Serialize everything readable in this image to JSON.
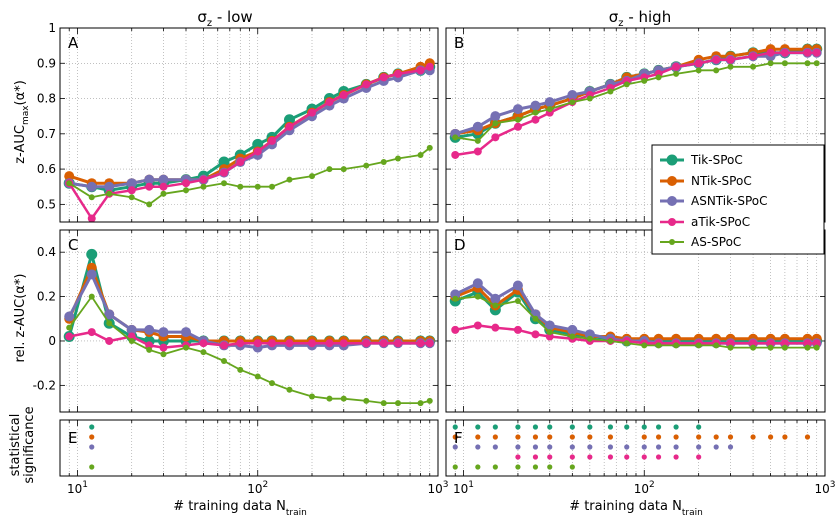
{
  "titles": {
    "left_main": "σ",
    "left_sub": "z",
    "left_rest": " - low",
    "right_main": "σ",
    "right_sub": "z",
    "right_rest": " - high"
  },
  "axis_labels": {
    "ylabel_top_main": "z-AUC",
    "ylabel_top_sub": "max",
    "ylabel_top_rest": "(α*)",
    "ylabel_mid": "rel. z-AUC(α*)",
    "ylabel_bot_line1": "statistical",
    "ylabel_bot_line2": "significance",
    "xlabel_main": "# training data N",
    "xlabel_sub": "train"
  },
  "panel_labels": [
    "A",
    "B",
    "C",
    "D",
    "E",
    "F"
  ],
  "colors": {
    "Tik-SPoC": "#1b9e77",
    "NTik-SPoC": "#d95f02",
    "ASNTik-SPoC": "#7570b3",
    "aTik-SPoC": "#e7298a",
    "AS-SPoC": "#66a61e"
  },
  "chart_data": [
    {
      "panel": "A",
      "type": "line",
      "title": "σz - low",
      "xlabel": "",
      "ylabel": "z-AUCmax(α*)",
      "xscale": "log",
      "xlim": [
        8,
        1000
      ],
      "ylim": [
        0.45,
        1.0
      ],
      "yticks": [
        0.5,
        0.6,
        0.7,
        0.8,
        0.9,
        1
      ],
      "xticks": [
        "10^1",
        "10^2",
        "10^3"
      ],
      "x": [
        9,
        12,
        15,
        20,
        25,
        30,
        40,
        50,
        65,
        80,
        100,
        120,
        150,
        200,
        250,
        300,
        400,
        500,
        600,
        800,
        900
      ],
      "series": [
        {
          "name": "Tik-SPoC",
          "values": [
            0.56,
            0.55,
            0.54,
            0.55,
            0.56,
            0.56,
            0.57,
            0.58,
            0.62,
            0.64,
            0.67,
            0.69,
            0.74,
            0.77,
            0.8,
            0.82,
            0.84,
            0.86,
            0.87,
            0.88,
            0.89
          ]
        },
        {
          "name": "NTik-SPoC",
          "values": [
            0.58,
            0.56,
            0.56,
            0.56,
            0.57,
            0.57,
            0.57,
            0.57,
            0.6,
            0.63,
            0.65,
            0.68,
            0.72,
            0.76,
            0.79,
            0.81,
            0.84,
            0.86,
            0.87,
            0.89,
            0.9
          ]
        },
        {
          "name": "ASNTik-SPoC",
          "values": [
            0.56,
            0.55,
            0.55,
            0.56,
            0.57,
            0.57,
            0.57,
            0.57,
            0.59,
            0.62,
            0.64,
            0.67,
            0.71,
            0.75,
            0.78,
            0.8,
            0.83,
            0.85,
            0.86,
            0.88,
            0.88
          ]
        },
        {
          "name": "aTik-SPoC",
          "values": [
            0.56,
            0.46,
            0.53,
            0.54,
            0.55,
            0.55,
            0.56,
            0.57,
            0.59,
            0.62,
            0.65,
            0.68,
            0.72,
            0.76,
            0.79,
            0.81,
            0.84,
            0.86,
            0.87,
            0.88,
            0.89
          ]
        },
        {
          "name": "AS-SPoC",
          "values": [
            0.56,
            0.52,
            0.53,
            0.52,
            0.5,
            0.53,
            0.54,
            0.55,
            0.56,
            0.55,
            0.55,
            0.55,
            0.57,
            0.58,
            0.6,
            0.6,
            0.61,
            0.62,
            0.63,
            0.64,
            0.66
          ]
        }
      ]
    },
    {
      "panel": "B",
      "type": "line",
      "title": "σz - high",
      "xscale": "log",
      "xlim": [
        8,
        1000
      ],
      "ylim": [
        0.45,
        1.0
      ],
      "yticks": [
        0.5,
        0.6,
        0.7,
        0.8,
        0.9,
        1
      ],
      "xticks": [
        "10^1",
        "10^2",
        "10^3"
      ],
      "legend": "center-right",
      "x": [
        9,
        12,
        15,
        20,
        25,
        30,
        40,
        50,
        65,
        80,
        100,
        120,
        150,
        200,
        250,
        300,
        400,
        500,
        600,
        800,
        900
      ],
      "series": [
        {
          "name": "Tik-SPoC",
          "values": [
            0.69,
            0.7,
            0.73,
            0.75,
            0.77,
            0.78,
            0.8,
            0.82,
            0.84,
            0.86,
            0.87,
            0.88,
            0.89,
            0.9,
            0.91,
            0.92,
            0.93,
            0.93,
            0.93,
            0.94,
            0.94
          ]
        },
        {
          "name": "NTik-SPoC",
          "values": [
            0.7,
            0.71,
            0.73,
            0.75,
            0.77,
            0.78,
            0.8,
            0.82,
            0.84,
            0.86,
            0.87,
            0.88,
            0.89,
            0.91,
            0.92,
            0.92,
            0.93,
            0.94,
            0.94,
            0.94,
            0.94
          ]
        },
        {
          "name": "ASNTik-SPoC",
          "values": [
            0.7,
            0.72,
            0.75,
            0.77,
            0.78,
            0.79,
            0.81,
            0.82,
            0.84,
            0.85,
            0.87,
            0.88,
            0.89,
            0.9,
            0.91,
            0.91,
            0.92,
            0.92,
            0.93,
            0.93,
            0.93
          ]
        },
        {
          "name": "aTik-SPoC",
          "values": [
            0.64,
            0.65,
            0.69,
            0.72,
            0.74,
            0.76,
            0.79,
            0.81,
            0.83,
            0.85,
            0.86,
            0.87,
            0.89,
            0.9,
            0.91,
            0.91,
            0.92,
            0.93,
            0.93,
            0.93,
            0.93
          ]
        },
        {
          "name": "AS-SPoC",
          "values": [
            0.69,
            0.68,
            0.73,
            0.74,
            0.76,
            0.77,
            0.79,
            0.8,
            0.82,
            0.84,
            0.85,
            0.86,
            0.87,
            0.88,
            0.88,
            0.89,
            0.89,
            0.9,
            0.9,
            0.9,
            0.9
          ]
        }
      ]
    },
    {
      "panel": "C",
      "type": "line",
      "ylabel": "rel. z-AUC(α*)",
      "xscale": "log",
      "xlim": [
        8,
        1000
      ],
      "ylim": [
        -0.32,
        0.5
      ],
      "yticks": [
        -0.2,
        0,
        0.2,
        0.4
      ],
      "xticks": [
        "10^1",
        "10^2",
        "10^3"
      ],
      "x": [
        9,
        12,
        15,
        20,
        25,
        30,
        40,
        50,
        65,
        80,
        100,
        120,
        150,
        200,
        250,
        300,
        400,
        500,
        600,
        800,
        900
      ],
      "series": [
        {
          "name": "Tik-SPoC",
          "values": [
            0.02,
            0.39,
            0.08,
            0.02,
            0.0,
            0.0,
            0.0,
            0.0,
            0.0,
            0.0,
            0.0,
            0.0,
            0.0,
            0.0,
            0.0,
            0.0,
            0.0,
            0.0,
            0.0,
            0.0,
            0.0
          ]
        },
        {
          "name": "NTik-SPoC",
          "values": [
            0.1,
            0.33,
            0.12,
            0.05,
            0.04,
            0.02,
            0.02,
            0.0,
            0.0,
            0.0,
            0.0,
            0.0,
            0.0,
            0.0,
            0.0,
            0.0,
            0.0,
            0.0,
            0.0,
            0.0,
            0.0
          ]
        },
        {
          "name": "ASNTik-SPoC",
          "values": [
            0.11,
            0.3,
            0.12,
            0.05,
            0.05,
            0.04,
            0.04,
            0.0,
            -0.02,
            -0.02,
            -0.03,
            -0.02,
            -0.02,
            -0.02,
            -0.02,
            -0.02,
            -0.01,
            -0.01,
            -0.01,
            -0.01,
            -0.01
          ]
        },
        {
          "name": "aTik-SPoC",
          "values": [
            0.02,
            0.04,
            0.0,
            0.02,
            -0.02,
            -0.03,
            -0.02,
            -0.01,
            -0.02,
            -0.01,
            -0.01,
            -0.01,
            -0.01,
            -0.01,
            -0.01,
            -0.01,
            -0.01,
            -0.01,
            -0.01,
            -0.01,
            -0.01
          ]
        },
        {
          "name": "AS-SPoC",
          "values": [
            0.06,
            0.2,
            0.08,
            0.0,
            -0.04,
            -0.06,
            -0.03,
            -0.05,
            -0.09,
            -0.13,
            -0.16,
            -0.19,
            -0.22,
            -0.25,
            -0.26,
            -0.26,
            -0.27,
            -0.28,
            -0.28,
            -0.28,
            -0.27
          ]
        }
      ]
    },
    {
      "panel": "D",
      "type": "line",
      "xscale": "log",
      "xlim": [
        8,
        1000
      ],
      "ylim": [
        -0.32,
        0.5
      ],
      "yticks": [
        -0.2,
        0,
        0.2,
        0.4
      ],
      "xticks": [
        "10^1",
        "10^2",
        "10^3"
      ],
      "x": [
        9,
        12,
        15,
        20,
        25,
        30,
        40,
        50,
        65,
        80,
        100,
        120,
        150,
        200,
        250,
        300,
        400,
        500,
        600,
        800,
        900
      ],
      "series": [
        {
          "name": "Tik-SPoC",
          "values": [
            0.18,
            0.22,
            0.14,
            0.22,
            0.1,
            0.05,
            0.03,
            0.02,
            0.01,
            0.0,
            0.0,
            0.0,
            0.0,
            0.0,
            0.0,
            0.0,
            0.0,
            0.0,
            0.0,
            0.0,
            0.0
          ]
        },
        {
          "name": "NTik-SPoC",
          "values": [
            0.2,
            0.24,
            0.16,
            0.23,
            0.12,
            0.06,
            0.04,
            0.02,
            0.02,
            0.01,
            0.01,
            0.01,
            0.01,
            0.01,
            0.01,
            0.01,
            0.01,
            0.01,
            0.01,
            0.01,
            0.01
          ]
        },
        {
          "name": "ASNTik-SPoC",
          "values": [
            0.21,
            0.26,
            0.19,
            0.25,
            0.12,
            0.07,
            0.05,
            0.03,
            0.01,
            0.0,
            0.0,
            -0.01,
            -0.01,
            -0.01,
            -0.01,
            -0.01,
            -0.01,
            -0.01,
            -0.01,
            -0.01,
            -0.01
          ]
        },
        {
          "name": "aTik-SPoC",
          "values": [
            0.05,
            0.07,
            0.06,
            0.05,
            0.03,
            0.02,
            0.01,
            0.0,
            0.0,
            0.0,
            -0.01,
            -0.01,
            -0.01,
            -0.01,
            -0.01,
            -0.01,
            -0.01,
            -0.01,
            -0.01,
            -0.01,
            -0.01
          ]
        },
        {
          "name": "AS-SPoC",
          "values": [
            0.19,
            0.2,
            0.16,
            0.18,
            0.1,
            0.04,
            0.02,
            0.01,
            0.0,
            -0.01,
            -0.02,
            -0.02,
            -0.02,
            -0.02,
            -0.02,
            -0.03,
            -0.03,
            -0.03,
            -0.03,
            -0.03,
            -0.03
          ]
        }
      ]
    },
    {
      "panel": "E",
      "type": "scatter",
      "ylabel": "statistical significance",
      "xscale": "log",
      "xlim": [
        8,
        1000
      ],
      "xlabel": "# training data Ntrain",
      "xticks": [
        "10^1",
        "10^2",
        "10^3"
      ],
      "rows": [
        {
          "name": "Tik-SPoC",
          "x": [
            12
          ]
        },
        {
          "name": "NTik-SPoC",
          "x": [
            12
          ]
        },
        {
          "name": "ASNTik-SPoC",
          "x": [
            12
          ]
        },
        {
          "name": "aTik-SPoC",
          "x": []
        },
        {
          "name": "AS-SPoC",
          "x": [
            12
          ]
        }
      ]
    },
    {
      "panel": "F",
      "type": "scatter",
      "xscale": "log",
      "xlim": [
        8,
        1000
      ],
      "xlabel": "# training data Ntrain",
      "xticks": [
        "10^1",
        "10^2",
        "10^3"
      ],
      "rows": [
        {
          "name": "Tik-SPoC",
          "x": [
            9,
            12,
            15,
            20,
            25,
            30,
            40,
            50,
            65,
            80,
            100,
            120,
            150,
            200
          ]
        },
        {
          "name": "NTik-SPoC",
          "x": [
            9,
            12,
            15,
            20,
            25,
            30,
            40,
            50,
            65,
            100,
            120,
            150,
            200,
            250,
            300,
            400,
            500,
            600,
            800
          ]
        },
        {
          "name": "ASNTik-SPoC",
          "x": [
            9,
            12,
            15,
            20,
            25,
            30,
            40,
            50,
            65,
            80,
            100,
            120,
            150,
            200,
            250,
            300
          ]
        },
        {
          "name": "aTik-SPoC",
          "x": [
            20,
            25,
            30,
            40,
            50,
            65,
            80,
            100,
            120,
            150,
            200
          ]
        },
        {
          "name": "AS-SPoC",
          "x": [
            9,
            12,
            15,
            20,
            25,
            30,
            40
          ]
        }
      ]
    }
  ]
}
